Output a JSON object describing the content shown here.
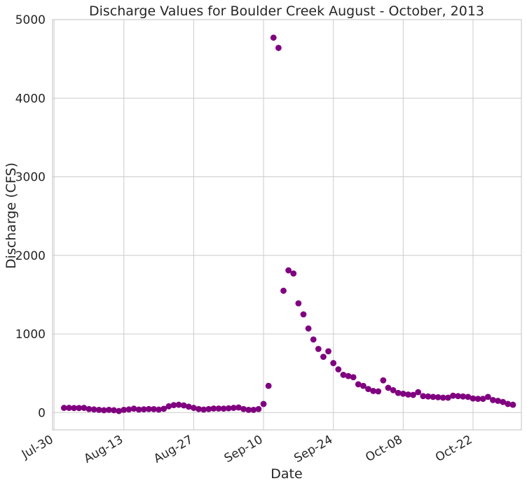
{
  "chart_data": {
    "type": "scatter",
    "title": "Discharge Values for Boulder Creek August - October, 2013",
    "xlabel": "Date",
    "ylabel": "Discharge (CFS)",
    "x_range": [
      "2013-07-30",
      "2013-11-01"
    ],
    "ylim": [
      -220,
      5000
    ],
    "x_ticks": [
      {
        "date": "2013-07-30",
        "label": "Jul-30"
      },
      {
        "date": "2013-08-13",
        "label": "Aug-13"
      },
      {
        "date": "2013-08-27",
        "label": "Aug-27"
      },
      {
        "date": "2013-09-10",
        "label": "Sep-10"
      },
      {
        "date": "2013-09-24",
        "label": "Sep-24"
      },
      {
        "date": "2013-10-08",
        "label": "Oct-08"
      },
      {
        "date": "2013-10-22",
        "label": "Oct-22"
      }
    ],
    "y_ticks": [
      0,
      1000,
      2000,
      3000,
      4000,
      5000
    ],
    "grid": true,
    "marker_color": "#800080",
    "series": [
      {
        "x": [
          "2013-08-01",
          "2013-08-02",
          "2013-08-03",
          "2013-08-04",
          "2013-08-05",
          "2013-08-06",
          "2013-08-07",
          "2013-08-08",
          "2013-08-09",
          "2013-08-10",
          "2013-08-11",
          "2013-08-12",
          "2013-08-13",
          "2013-08-14",
          "2013-08-15",
          "2013-08-16",
          "2013-08-17",
          "2013-08-18",
          "2013-08-19",
          "2013-08-20",
          "2013-08-21",
          "2013-08-22",
          "2013-08-23",
          "2013-08-24",
          "2013-08-25",
          "2013-08-26",
          "2013-08-27",
          "2013-08-28",
          "2013-08-29",
          "2013-08-30",
          "2013-08-31",
          "2013-09-01",
          "2013-09-02",
          "2013-09-03",
          "2013-09-04",
          "2013-09-05",
          "2013-09-06",
          "2013-09-07",
          "2013-09-08",
          "2013-09-09",
          "2013-09-10",
          "2013-09-11",
          "2013-09-12",
          "2013-09-13",
          "2013-09-14",
          "2013-09-15",
          "2013-09-16",
          "2013-09-17",
          "2013-09-18",
          "2013-09-19",
          "2013-09-20",
          "2013-09-21",
          "2013-09-22",
          "2013-09-23",
          "2013-09-24",
          "2013-09-25",
          "2013-09-26",
          "2013-09-27",
          "2013-09-28",
          "2013-09-29",
          "2013-09-30",
          "2013-10-01",
          "2013-10-02",
          "2013-10-03",
          "2013-10-04",
          "2013-10-05",
          "2013-10-06",
          "2013-10-07",
          "2013-10-08",
          "2013-10-09",
          "2013-10-10",
          "2013-10-11",
          "2013-10-12",
          "2013-10-13",
          "2013-10-14",
          "2013-10-15",
          "2013-10-16",
          "2013-10-17",
          "2013-10-18",
          "2013-10-19",
          "2013-10-20",
          "2013-10-21",
          "2013-10-22",
          "2013-10-23",
          "2013-10-24",
          "2013-10-25",
          "2013-10-26",
          "2013-10-27",
          "2013-10-28",
          "2013-10-29",
          "2013-10-30"
        ],
        "y": [
          60,
          60,
          58,
          58,
          60,
          45,
          40,
          35,
          30,
          35,
          30,
          20,
          35,
          40,
          50,
          38,
          42,
          45,
          44,
          38,
          48,
          80,
          95,
          100,
          92,
          75,
          60,
          45,
          38,
          45,
          52,
          52,
          50,
          55,
          60,
          65,
          45,
          35,
          35,
          45,
          110,
          340,
          4770,
          4640,
          1550,
          1810,
          1770,
          1390,
          1250,
          1070,
          930,
          810,
          710,
          780,
          630,
          550,
          480,
          465,
          450,
          360,
          340,
          300,
          275,
          270,
          410,
          315,
          285,
          250,
          240,
          230,
          225,
          260,
          210,
          205,
          200,
          195,
          190,
          190,
          215,
          210,
          205,
          200,
          180,
          175,
          175,
          200,
          160,
          150,
          135,
          110,
          100
        ],
        "marker": "circle"
      }
    ]
  }
}
